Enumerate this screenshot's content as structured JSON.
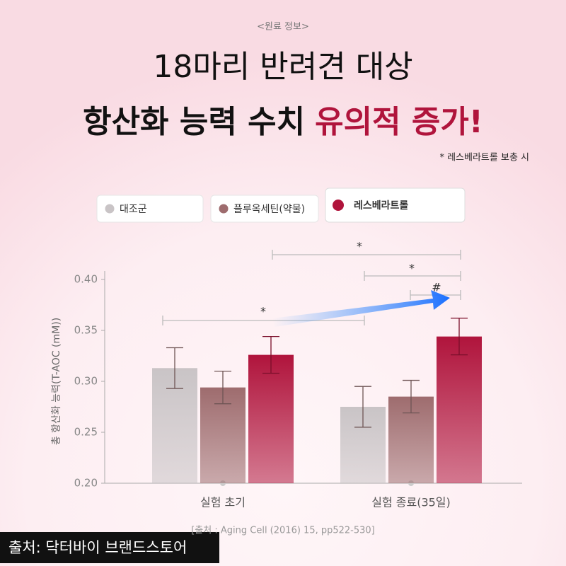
{
  "header": {
    "kicker": "<원료 정보>",
    "line1": "18마리 반려견 대상",
    "line2": "항산화 능력 수치",
    "line2_accent": "유의적 증가!",
    "note": "* 레스베라트롤 보충 시"
  },
  "chart_data": {
    "type": "bar",
    "y_label": "총 항산화 능력(T-AOC (mM))",
    "categories": [
      "실험 초기",
      "실험 종료(35일)"
    ],
    "series": [
      {
        "name": "대조군",
        "color": "#c9c4c6",
        "values": [
          0.313,
          0.275
        ],
        "errors": [
          0.02,
          0.02
        ]
      },
      {
        "name": "플루옥세틴(약물)",
        "color": "#9e6c6e",
        "values": [
          0.294,
          0.285
        ],
        "errors": [
          0.016,
          0.016
        ]
      },
      {
        "name": "레스베라트롤",
        "color": "#b0143c",
        "values": [
          0.326,
          0.344
        ],
        "errors": [
          0.018,
          0.018
        ]
      }
    ],
    "ylim": [
      0.2,
      0.4
    ],
    "yticks": [
      {
        "value": 0.2,
        "label": "0.20"
      },
      0.25,
      {
        "value": 0.3,
        "label": "0.30"
      },
      0.35,
      {
        "value": 0.4,
        "label": "0.40"
      }
    ],
    "annotations": [
      "*",
      "*",
      "*",
      "#"
    ]
  },
  "source": "[출처 : Aging Cell (2016) 15, pp522-530]",
  "watermark": "출처: 닥터바이 브랜드스토어"
}
